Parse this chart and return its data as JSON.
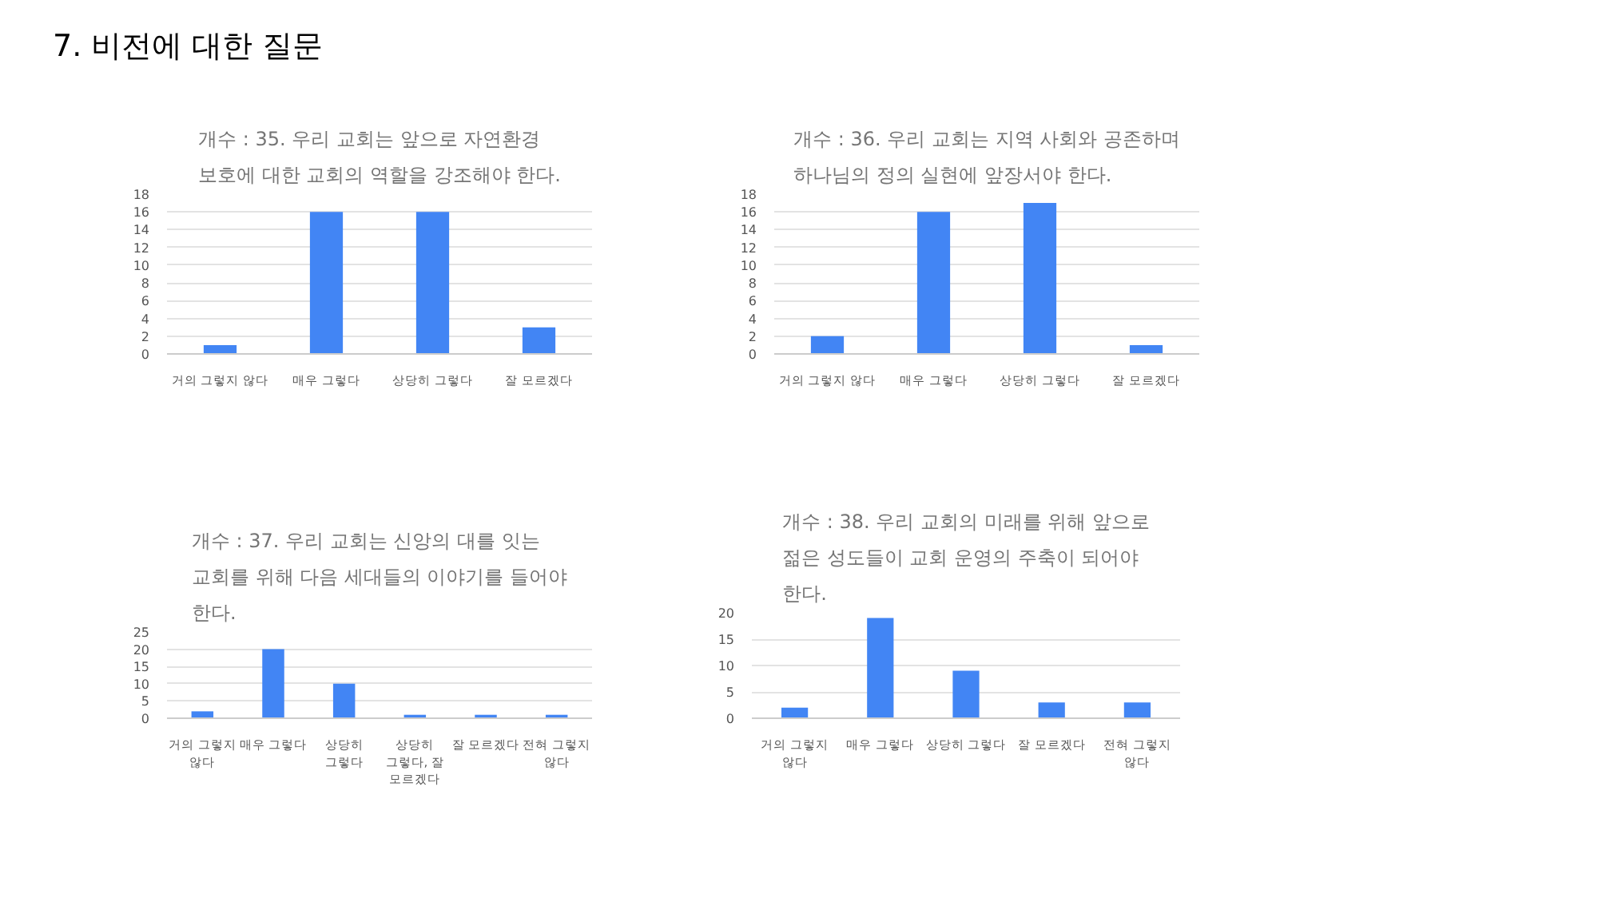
{
  "chart_data": [
    {
      "type": "other",
      "title": "7. 비전에 대한 질문"
    },
    {
      "type": "bar",
      "title": "개수 : 35. 우리 교회는 앞으로 자연환경 보호에 대한 교회의 역할을 강조해야 한다.",
      "categories": [
        "거의 그렇지 않다",
        "매우 그렇다",
        "상당히 그렇다",
        "잘 모르겠다"
      ],
      "values": [
        1,
        16,
        16,
        3
      ],
      "color": "#4285f4",
      "ylim": [
        0,
        18
      ],
      "yticks": [
        0,
        2,
        4,
        6,
        8,
        10,
        12,
        14,
        16,
        18
      ],
      "grid": "y"
    },
    {
      "type": "bar",
      "title": "개수 : 36. 우리 교회는 지역 사회와 공존하며 하나님의 정의 실현에 앞장서야 한다.",
      "categories": [
        "거의 그렇지 않다",
        "매우 그렇다",
        "상당히 그렇다",
        "잘 모르겠다"
      ],
      "values": [
        2,
        16,
        17,
        1
      ],
      "color": "#4285f4",
      "ylim": [
        0,
        18
      ],
      "yticks": [
        0,
        2,
        4,
        6,
        8,
        10,
        12,
        14,
        16,
        18
      ],
      "grid": "y"
    },
    {
      "type": "bar",
      "title": "개수 : 37. 우리 교회는 신앙의 대를 잇는 교회를 위해 다음 세대들의 이야기를 들어야 한다.",
      "categories": [
        "거의 그렇지 않다",
        "매우 그렇다",
        "상당히 그렇다",
        "상당히 그렇다, 잘 모르겠다",
        "잘 모르겠다",
        "전혀 그렇지 않다"
      ],
      "values": [
        2,
        20,
        10,
        1,
        1,
        1
      ],
      "color": "#4285f4",
      "ylim": [
        0,
        25
      ],
      "yticks": [
        0,
        5,
        10,
        15,
        20,
        25
      ],
      "grid": "y"
    },
    {
      "type": "bar",
      "title": "개수 : 38. 우리 교회의 미래를 위해 앞으로 젊은 성도들이 교회 운영의 주축이 되어야 한다.",
      "categories": [
        "거의 그렇지 않다",
        "매우 그렇다",
        "상당히 그렇다",
        "잘 모르겠다",
        "전혀 그렇지 않다"
      ],
      "values": [
        2,
        19,
        9,
        3,
        3
      ],
      "color": "#4285f4",
      "ylim": [
        0,
        20
      ],
      "yticks": [
        0,
        5,
        10,
        15,
        20
      ],
      "grid": "y"
    }
  ]
}
